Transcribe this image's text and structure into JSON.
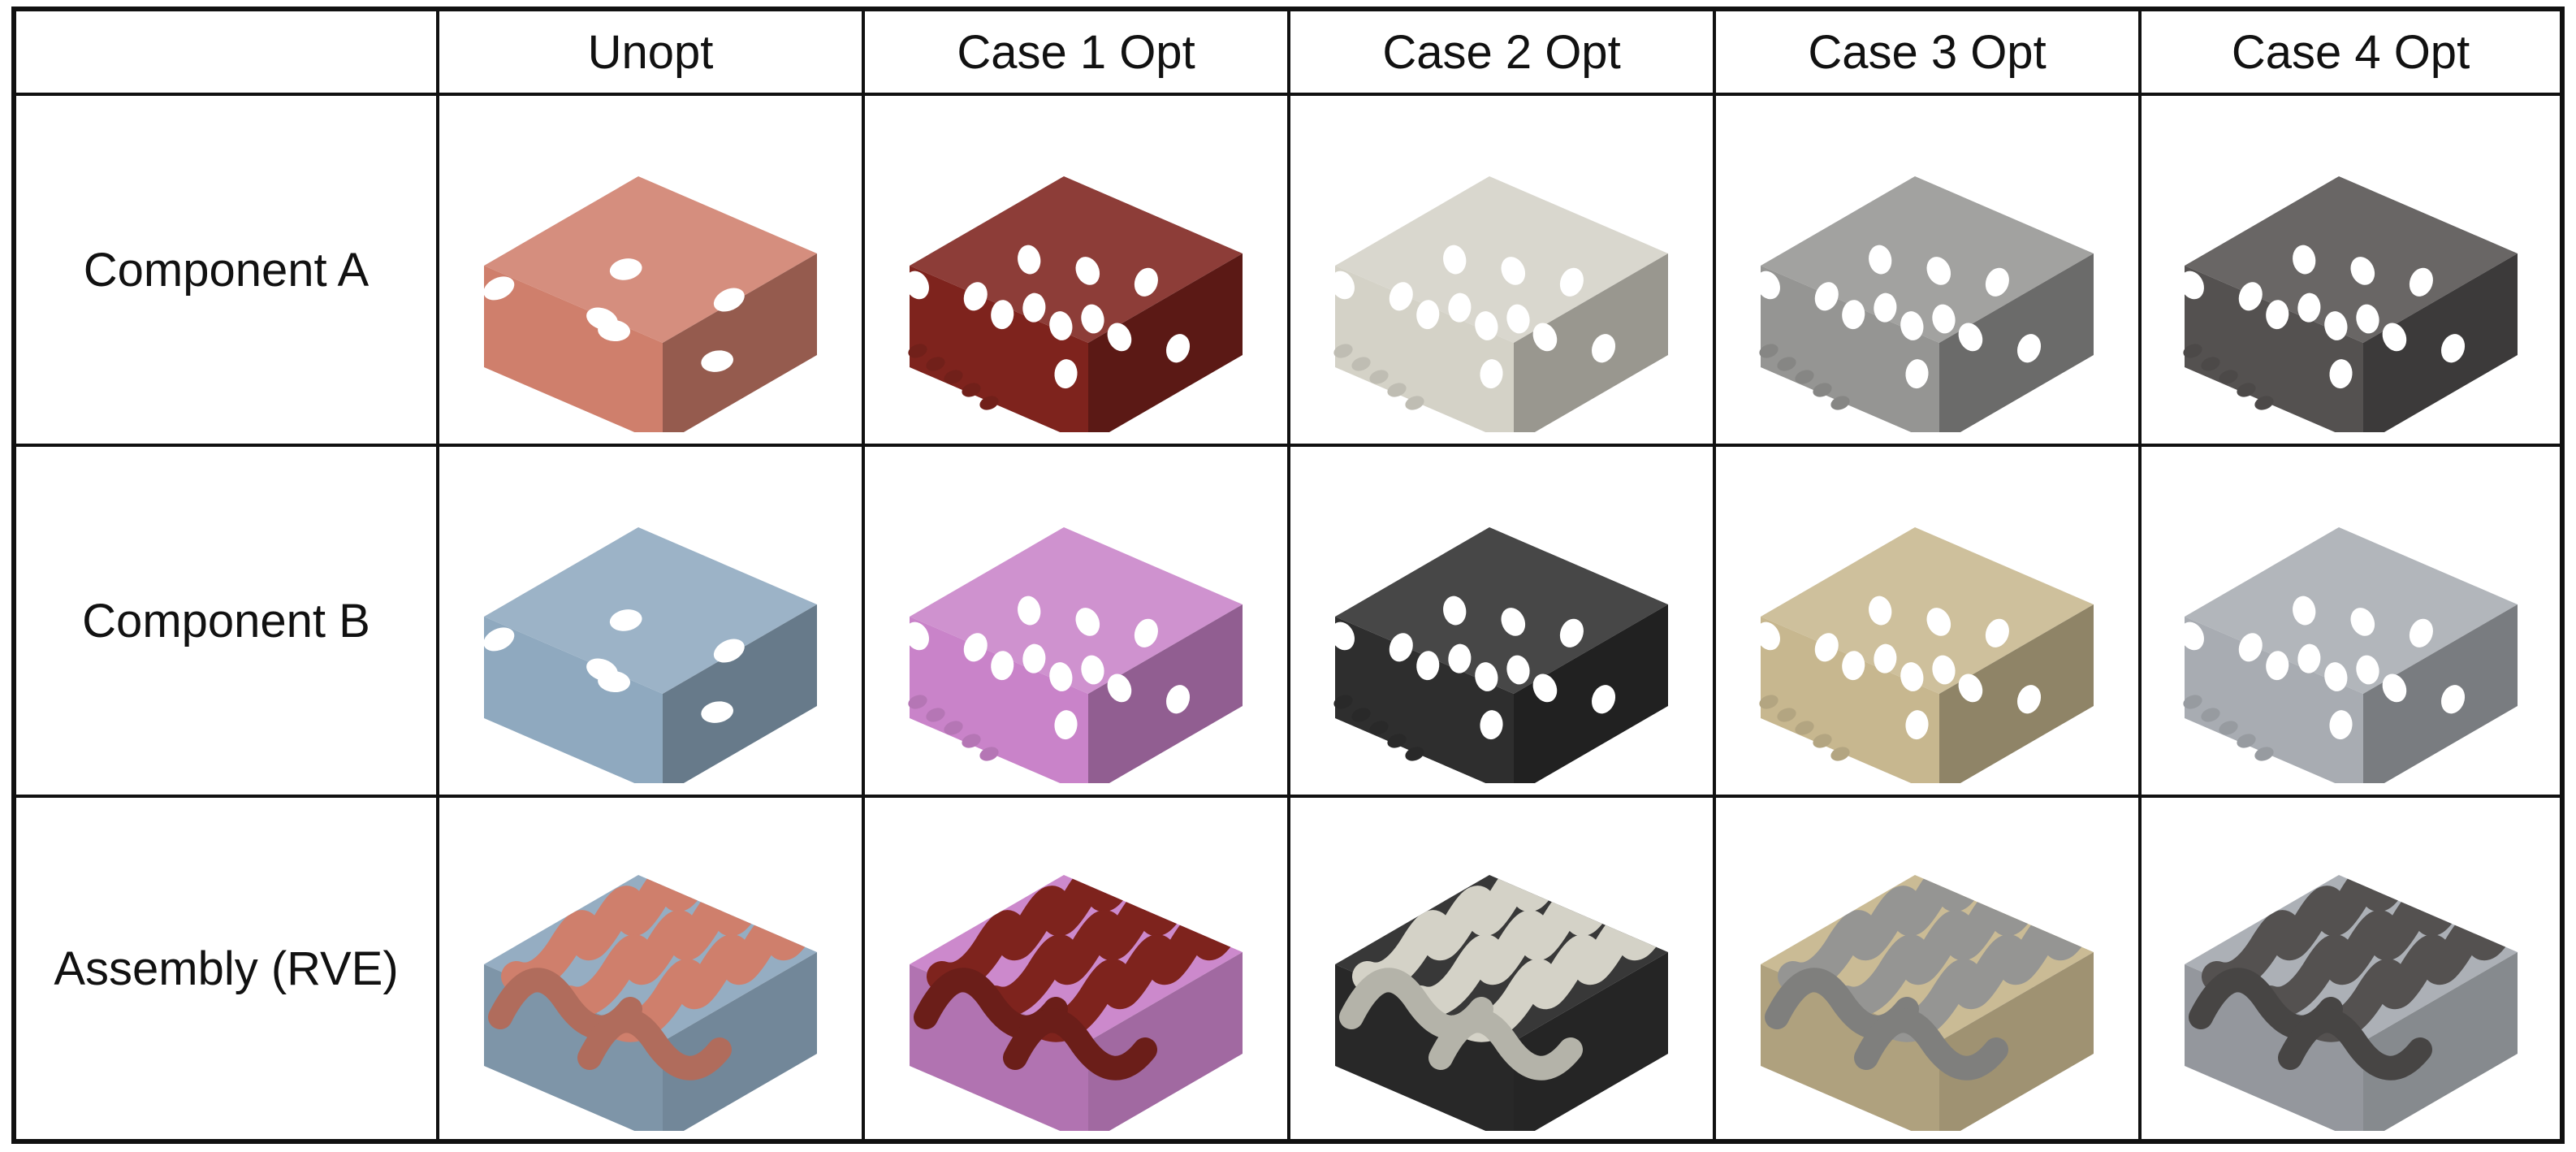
{
  "corner": "",
  "columns": [
    "Unopt",
    "Case 1 Opt",
    "Case 2 Opt",
    "Case 3 Opt",
    "Case 4 Opt"
  ],
  "rows": [
    "Component A",
    "Component B",
    "Assembly (RVE)"
  ],
  "materials": {
    "A": [
      "#cf7f6c",
      "#7e231d",
      "#d4d2c7",
      "#959593",
      "#545150"
    ],
    "B": [
      "#8fa9bf",
      "#c983c9",
      "#2e2e2e",
      "#c7b78f",
      "#a8acb2"
    ]
  },
  "render_kinds": {
    "component": "lattice-strut",
    "assembly": "wavy-interface"
  }
}
